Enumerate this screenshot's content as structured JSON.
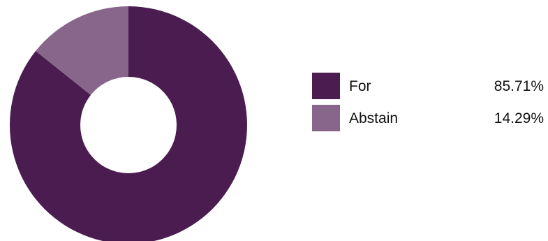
{
  "chart_data": {
    "type": "pie",
    "title": "",
    "hole": true,
    "legend_position": "right",
    "slices": [
      {
        "label": "For",
        "value": 85.71,
        "value_label": "85.71%",
        "color": "#4b1c50"
      },
      {
        "label": "Abstain",
        "value": 14.29,
        "value_label": "14.29%",
        "color": "#88668b"
      }
    ]
  }
}
